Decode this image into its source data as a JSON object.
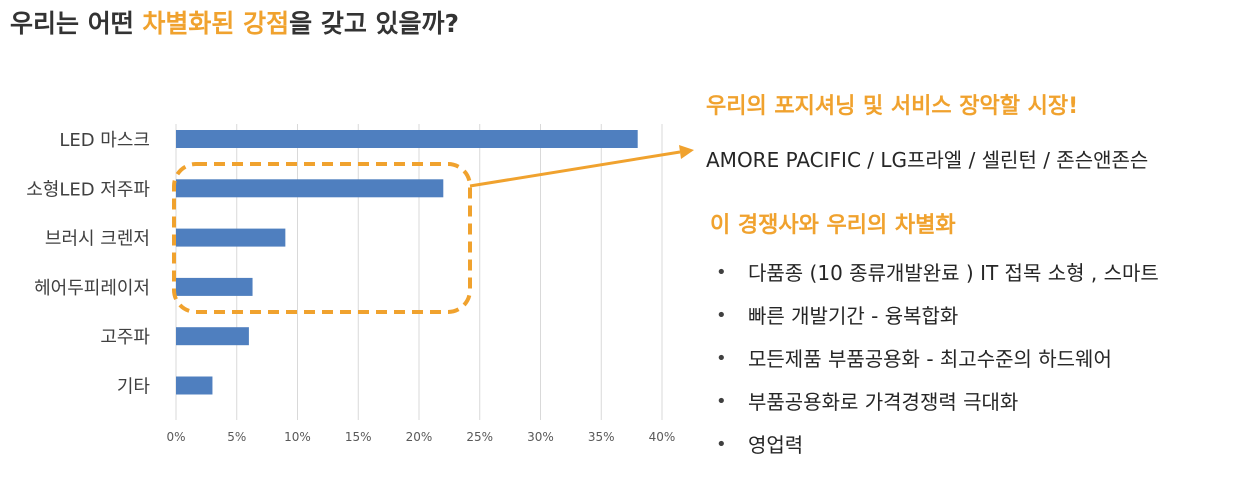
{
  "headline": {
    "pre": "우리는 어떤 ",
    "accent1": "차별화된 강점",
    "mid": "을 갖고 있을까?"
  },
  "positioning_title": "우리의 포지셔닝 및 서비스 장악할 시장!",
  "competitors_text": "AMORE PACIFIC / LG프라엘 / 셀린턴 / 존슨앤존슨",
  "diff_title": "이 경쟁사와 우리의 차별화",
  "bullet_symbol": "•",
  "bullets": [
    "다품종 (10 종류개발완료 ) IT 접목 소형 , 스마트",
    "빠른 개발기간 - 융복합화",
    "모든제품 부품공용화 - 최고수준의 하드웨어",
    "부품공용화로 가격경쟁력 극대화",
    "영업력"
  ],
  "colors": {
    "accent": "#f0a22e",
    "bar": "#4f7fbf",
    "grid": "#d9d9d9",
    "highlight": "#f0a22e"
  },
  "chart_data": {
    "type": "bar",
    "orientation": "horizontal",
    "categories": [
      "LED 마스크",
      "소형LED 저주파",
      "브러시 크렌저",
      "헤어두피레이저",
      "고주파",
      "기타"
    ],
    "values": [
      38,
      22,
      9,
      6.3,
      6,
      3
    ],
    "x_ticks": [
      "0%",
      "5%",
      "10%",
      "15%",
      "20%",
      "25%",
      "30%",
      "35%",
      "40%"
    ],
    "xlim": [
      0,
      40
    ],
    "grid": "vertical",
    "highlighted_categories": [
      "소형LED 저주파",
      "브러시 크렌저",
      "헤어두피레이저"
    ]
  }
}
